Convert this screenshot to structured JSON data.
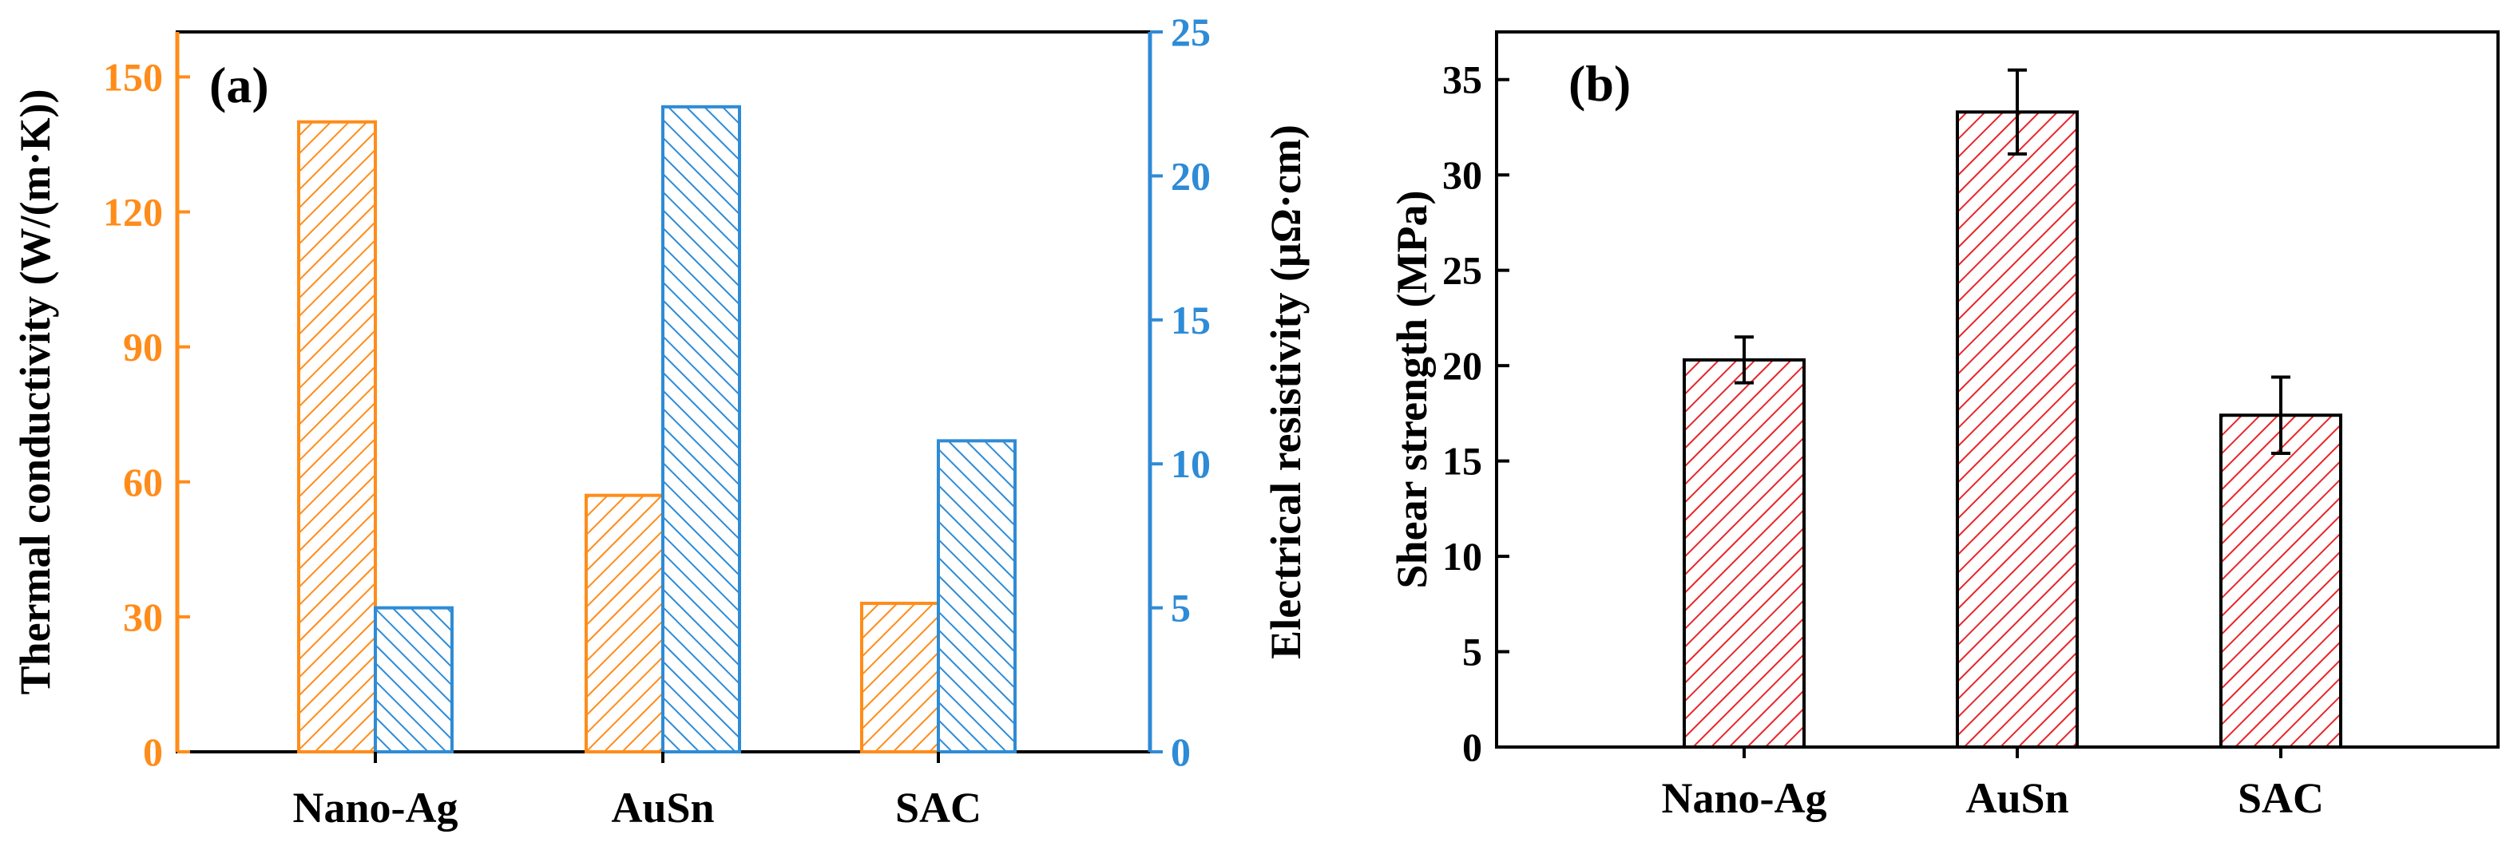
{
  "colors": {
    "thermal": "#FF8C1A",
    "electrical": "#2E8BD6",
    "shear": "#E8262A",
    "axis": "#000000"
  },
  "chart_data": [
    {
      "type": "bar",
      "panel_label": "(a)",
      "categories": [
        "Nano-Ag",
        "AuSn",
        "SAC"
      ],
      "series": [
        {
          "name": "Thermal conductivity",
          "axis": "left",
          "values": [
            140,
            57,
            33
          ],
          "color_key": "thermal"
        },
        {
          "name": "Electrical resistivity",
          "axis": "right",
          "values": [
            5,
            22.4,
            10.8
          ],
          "color_key": "electrical"
        }
      ],
      "ylabel_left": "Thermal conductivity (W/(m·K))",
      "ylabel_right": "Electrical resistivity (μΩ·cm)",
      "ylim_left": [
        0,
        160
      ],
      "ylim_right": [
        0,
        25
      ],
      "yticks_left": [
        "0",
        "30",
        "60",
        "90",
        "120",
        "150"
      ],
      "yticks_right": [
        "0",
        "5",
        "10",
        "15",
        "20",
        "25"
      ],
      "ytick_values_left": [
        0,
        30,
        60,
        90,
        120,
        150
      ],
      "ytick_values_right": [
        0,
        5,
        10,
        15,
        20,
        25
      ],
      "grid": false
    },
    {
      "type": "bar",
      "panel_label": "(b)",
      "categories": [
        "Nano-Ag",
        "AuSn",
        "SAC"
      ],
      "series": [
        {
          "name": "Shear strength",
          "values": [
            20.3,
            33.3,
            17.4
          ],
          "error": [
            1.2,
            2.2,
            2.0
          ],
          "color_key": "shear"
        }
      ],
      "ylabel": "Shear strength (MPa)",
      "ylim": [
        0,
        37.5
      ],
      "yticks": [
        "0",
        "5",
        "10",
        "15",
        "20",
        "25",
        "30",
        "35"
      ],
      "ytick_values": [
        0,
        5,
        10,
        15,
        20,
        25,
        30,
        35
      ],
      "grid": false
    }
  ]
}
